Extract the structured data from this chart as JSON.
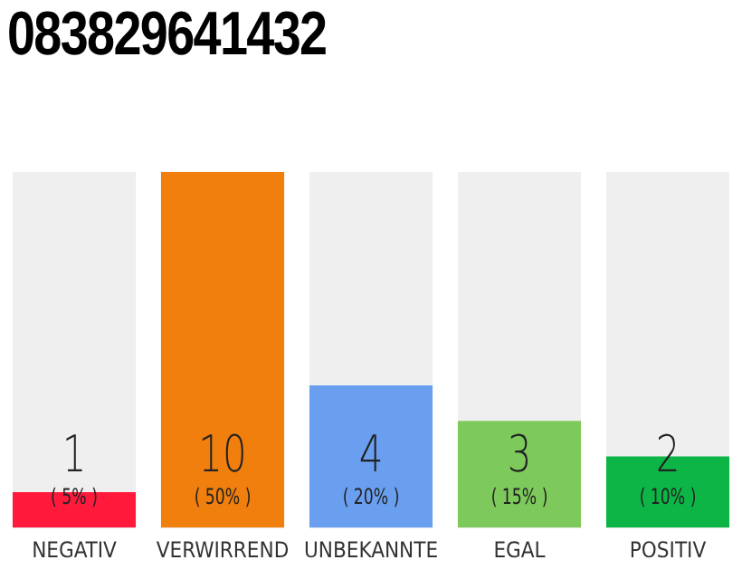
{
  "chart_data": {
    "type": "bar",
    "title": "083829641432",
    "categories": [
      "NEGATIV",
      "VERWIRREND",
      "UNBEKANNTE",
      "EGAL",
      "POSITIV"
    ],
    "values": [
      1,
      10,
      4,
      3,
      2
    ],
    "colors": [
      "#ff1a3c",
      "#f07f0e",
      "#6a9ff0",
      "#7ec95c",
      "#0cb546"
    ],
    "data_labels": true,
    "annotations": [
      "( 5% )",
      "( 50% )",
      "( 20% )",
      "( 15% )",
      "( 10% )"
    ],
    "grid": false,
    "legend": false
  }
}
